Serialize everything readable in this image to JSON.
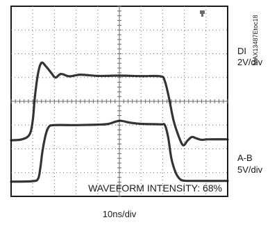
{
  "chart_data": {
    "type": "line",
    "title": "",
    "xlabel": "10ns/div",
    "ylabel": "",
    "grid": true,
    "divisions": {
      "x": 10,
      "y": 8
    },
    "xlim": [
      0,
      10
    ],
    "ylim": [
      0,
      8
    ],
    "annotation": "WAVEFORM INTENSITY: 68%",
    "figure_id": "MAX13487Etoc18",
    "series": [
      {
        "name": "DI",
        "scale": "2V/div",
        "x": [
          0,
          0.5,
          0.85,
          1.0,
          1.1,
          1.25,
          1.4,
          1.6,
          1.85,
          2.05,
          2.3,
          2.7,
          3.2,
          4,
          5,
          6,
          6.9,
          7.1,
          7.3,
          7.5,
          7.75,
          7.95,
          8.15,
          8.35,
          8.55,
          8.8,
          9.1,
          10
        ],
        "y": [
          2.36,
          2.4,
          2.6,
          3.2,
          4.2,
          5.2,
          5.62,
          5.48,
          5.2,
          5.0,
          5.15,
          5.05,
          5.12,
          5.07,
          5.08,
          5.06,
          5.05,
          4.85,
          4.1,
          3.2,
          2.5,
          2.15,
          2.35,
          2.5,
          2.44,
          2.38,
          2.4,
          2.4
        ]
      },
      {
        "name": "A-B",
        "scale": "5V/div",
        "x": [
          0,
          1,
          1.25,
          1.35,
          1.45,
          1.6,
          1.75,
          2.0,
          3,
          4,
          4.5,
          5.0,
          5.5,
          6,
          6.9,
          7.1,
          7.25,
          7.4,
          7.6,
          7.8,
          8,
          8.4,
          10
        ],
        "y": [
          0.62,
          0.64,
          0.75,
          1.2,
          1.9,
          2.6,
          2.93,
          3.0,
          3.0,
          3.02,
          3.05,
          3.18,
          3.1,
          3.05,
          3.03,
          3.0,
          2.5,
          1.6,
          1.0,
          0.72,
          0.66,
          0.65,
          0.65
        ]
      }
    ]
  },
  "legend": {
    "channel1_name": "DI",
    "channel1_scale": "2V/div",
    "channel2_name": "A-B",
    "channel2_scale": "5V/div"
  },
  "marker_icon": "trigger-marker-icon",
  "colors": {
    "background": "#ffffff",
    "border": "#1a1a1a",
    "grid": "#6a6a6a",
    "trace": "#111111"
  }
}
